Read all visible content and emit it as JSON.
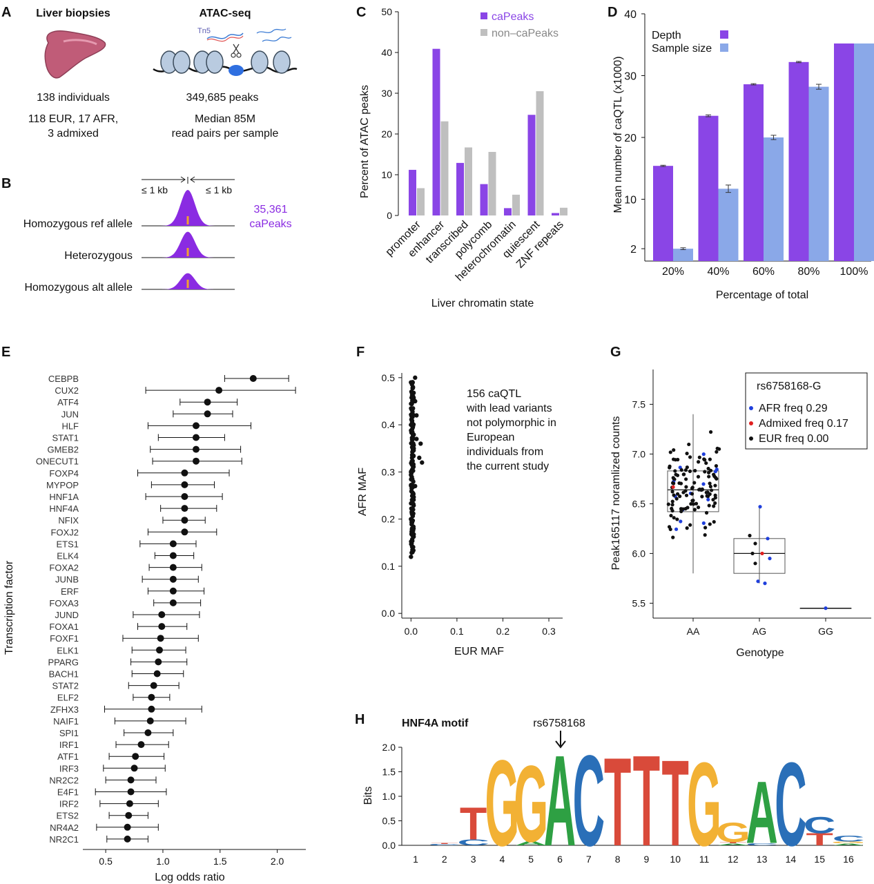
{
  "panels": {
    "A": "A",
    "B": "B",
    "C": "C",
    "D": "D",
    "E": "E",
    "F": "F",
    "G": "G",
    "H": "H"
  },
  "panel_a": {
    "left_title": "Liver biopsies",
    "left_line1": "138 individuals",
    "left_line2": "118 EUR, 17 AFR,",
    "left_line3": "3 admixed",
    "right_title": "ATAC-seq",
    "tn5": "Tn5",
    "right_line1": "349,685 peaks",
    "right_line2": "Median 85M",
    "right_line3": "read pairs per sample"
  },
  "panel_b": {
    "left_kb": "≤ 1 kb",
    "right_kb": "≤ 1 kb",
    "count": "35,361",
    "count_label": "caPeaks",
    "rows": [
      "Homozygous ref allele",
      "Heterozygous",
      "Homozygous alt allele"
    ],
    "peak_heights": [
      1.0,
      0.72,
      0.45
    ],
    "colors": {
      "peak": "#8a2be2",
      "allele": "#f0a030"
    }
  },
  "chart_data": [
    {
      "id": "C",
      "type": "bar",
      "categories": [
        "promoter",
        "enhancer",
        "transcribed",
        "polycomb",
        "heterochromatin",
        "quiescent",
        "ZNF repeats"
      ],
      "series": [
        {
          "name": "caPeaks",
          "values": [
            11.2,
            40.9,
            12.9,
            7.7,
            1.8,
            24.7,
            0.6
          ],
          "color": "#8a45e6"
        },
        {
          "name": "non–caPeaks",
          "values": [
            6.7,
            23.1,
            16.7,
            15.6,
            5.1,
            30.5,
            1.9
          ],
          "color": "#bfbfbf"
        }
      ],
      "xlabel": "Liver chromatin state",
      "ylabel": "Percent of ATAC peaks",
      "ylim": [
        0,
        50
      ],
      "yticks": [
        0,
        10,
        20,
        30,
        40,
        50
      ],
      "legend": "top-right"
    },
    {
      "id": "D",
      "type": "bar",
      "categories": [
        "20%",
        "40%",
        "60%",
        "80%",
        "100%"
      ],
      "series": [
        {
          "name": "Depth",
          "values": [
            15.4,
            23.5,
            28.6,
            32.2,
            35.2
          ],
          "errors": [
            0.1,
            0.15,
            0.1,
            0.1,
            0
          ],
          "color": "#8a45e6"
        },
        {
          "name": "Sample size",
          "values": [
            2.0,
            11.7,
            20.0,
            28.2,
            35.2
          ],
          "errors": [
            0.15,
            0.6,
            0.35,
            0.4,
            0
          ],
          "color": "#8aa8e8"
        }
      ],
      "xlabel": "Percentage of total",
      "ylabel": "Mean number of caQTL (x1000)",
      "ylim": [
        0,
        40
      ],
      "yticks": [
        2,
        10,
        20,
        30,
        40
      ],
      "legend": "top-left"
    },
    {
      "id": "E",
      "type": "scatter",
      "categories": [
        "CEBPB",
        "CUX2",
        "ATF4",
        "JUN",
        "HLF",
        "STAT1",
        "GMEB2",
        "ONECUT1",
        "FOXP4",
        "MYPOP",
        "HNF1A",
        "HNF4A",
        "NFIX",
        "FOXJ2",
        "ETS1",
        "ELK4",
        "FOXA2",
        "JUNB",
        "ERF",
        "FOXA3",
        "JUND",
        "FOXA1",
        "FOXF1",
        "ELK1",
        "PPARG",
        "BACH1",
        "STAT2",
        "ELF2",
        "ZFHX3",
        "NAIF1",
        "SPI1",
        "IRF1",
        "ATF1",
        "IRF3",
        "NR2C2",
        "E4F1",
        "IRF2",
        "ETS2",
        "NR4A2",
        "NR2C1"
      ],
      "values": [
        1.79,
        1.49,
        1.39,
        1.39,
        1.29,
        1.29,
        1.29,
        1.29,
        1.19,
        1.19,
        1.19,
        1.19,
        1.19,
        1.19,
        1.09,
        1.09,
        1.09,
        1.09,
        1.09,
        1.09,
        0.99,
        0.99,
        0.98,
        0.97,
        0.96,
        0.95,
        0.92,
        0.9,
        0.9,
        0.89,
        0.87,
        0.81,
        0.76,
        0.75,
        0.72,
        0.72,
        0.71,
        0.7,
        0.69,
        0.69
      ],
      "ci_low": [
        1.54,
        0.85,
        1.15,
        1.09,
        0.87,
        0.96,
        0.89,
        0.91,
        0.78,
        0.9,
        0.85,
        0.98,
        1.0,
        0.87,
        0.8,
        0.93,
        0.88,
        0.82,
        0.87,
        0.92,
        0.74,
        0.78,
        0.65,
        0.73,
        0.72,
        0.73,
        0.7,
        0.74,
        0.49,
        0.58,
        0.66,
        0.59,
        0.53,
        0.48,
        0.5,
        0.41,
        0.45,
        0.53,
        0.42,
        0.51
      ],
      "ci_high": [
        2.1,
        2.16,
        1.65,
        1.61,
        1.77,
        1.54,
        1.68,
        1.69,
        1.58,
        1.45,
        1.52,
        1.47,
        1.37,
        1.47,
        1.29,
        1.27,
        1.34,
        1.31,
        1.36,
        1.33,
        1.32,
        1.21,
        1.31,
        1.2,
        1.21,
        1.18,
        1.14,
        1.06,
        1.34,
        1.2,
        1.09,
        1.05,
        1.01,
        1.02,
        0.94,
        1.03,
        0.96,
        0.87,
        0.96,
        0.87
      ],
      "xlabel": "Log odds ratio",
      "ylabel": "Transcription factor",
      "xlim": [
        0.3,
        2.25
      ],
      "xticks": [
        0.5,
        1.0,
        1.5,
        2.0
      ],
      "xtick_labels": [
        "0.5",
        "1.0",
        "1.5",
        "2.0"
      ]
    },
    {
      "id": "F",
      "type": "scatter",
      "n_points": 156,
      "x": [
        0.0,
        0.0,
        0.0,
        0.0,
        0.0,
        0.003,
        0.006,
        0.009,
        0.009,
        0.009,
        0.012,
        0.012,
        0.018,
        0.021,
        0.024
      ],
      "y": [
        0.12,
        0.2,
        0.3,
        0.4,
        0.49,
        0.25,
        0.35,
        0.45,
        0.5,
        0.27,
        0.37,
        0.42,
        0.33,
        0.36,
        0.32
      ],
      "annotation_lines": [
        "156 caQTL",
        "with lead variants",
        "not polymorphic in",
        "European",
        "individuals from",
        "the current study"
      ],
      "xlabel": "EUR MAF",
      "ylabel": "AFR MAF",
      "xlim": [
        -0.02,
        0.33
      ],
      "ylim": [
        -0.01,
        0.51
      ],
      "xticks": [
        0.0,
        0.1,
        0.2,
        0.3
      ],
      "xtick_labels": [
        "0.0",
        "0.1",
        "0.2",
        "0.3"
      ],
      "yticks": [
        0.0,
        0.1,
        0.2,
        0.3,
        0.4,
        0.5
      ],
      "ytick_labels": [
        "0.0",
        "0.1",
        "0.2",
        "0.3",
        "0.4",
        "0.5"
      ]
    },
    {
      "id": "G",
      "type": "box",
      "categories": [
        "AA",
        "AG",
        "GG"
      ],
      "boxes": [
        {
          "q1": 6.42,
          "median": 6.64,
          "q3": 6.83,
          "whisker_low": 5.8,
          "whisker_high": 7.4
        },
        {
          "q1": 5.8,
          "median": 6.0,
          "q3": 6.15,
          "whisker_low": 5.7,
          "whisker_high": 6.47
        },
        {
          "q1": 5.45,
          "median": 5.45,
          "q3": 5.45,
          "whisker_low": 5.45,
          "whisker_high": 5.45
        }
      ],
      "points_AG": [
        6.47,
        6.18,
        6.15,
        6.1,
        6.0,
        6.0,
        5.95,
        5.9,
        5.72,
        5.7
      ],
      "points_GG": [
        5.45
      ],
      "legend_title": "rs6758168-G",
      "legend": [
        {
          "label": "AFR freq 0.29",
          "color": "#1f3fdc"
        },
        {
          "label": "Admixed freq 0.17",
          "color": "#e02020"
        },
        {
          "label": "EUR freq 0.00",
          "color": "#111111"
        }
      ],
      "xlabel": "Genotype",
      "ylabel": "Peak165117  noramlized counts",
      "ylim": [
        5.35,
        7.85
      ],
      "yticks": [
        5.5,
        6.0,
        6.5,
        7.0,
        7.5
      ],
      "ytick_labels": [
        "5.5",
        "6.0",
        "6.5",
        "7.0",
        "7.5"
      ]
    },
    {
      "id": "H",
      "type": "sequence-logo",
      "title": "HNF4A motif",
      "variant": "rs6758168",
      "variant_position": 6,
      "positions": [
        1,
        2,
        3,
        4,
        5,
        6,
        7,
        8,
        9,
        10,
        11,
        12,
        13,
        14,
        15,
        16
      ],
      "letters": [
        [],
        [
          {
            "b": "C",
            "h": 0.03
          },
          {
            "b": "T",
            "h": 0.02
          }
        ],
        [
          {
            "b": "C",
            "h": 0.12
          },
          {
            "b": "T",
            "h": 0.68
          }
        ],
        [
          {
            "b": "G",
            "h": 1.8
          }
        ],
        [
          {
            "b": "A",
            "h": 0.08
          },
          {
            "b": "G",
            "h": 1.6
          }
        ],
        [
          {
            "b": "A",
            "h": 1.9
          }
        ],
        [
          {
            "b": "C",
            "h": 1.9
          }
        ],
        [
          {
            "b": "T",
            "h": 1.85
          }
        ],
        [
          {
            "b": "T",
            "h": 1.9
          }
        ],
        [
          {
            "b": "T",
            "h": 1.8
          }
        ],
        [
          {
            "b": "G",
            "h": 1.75
          }
        ],
        [
          {
            "b": "A",
            "h": 0.04
          },
          {
            "b": "T",
            "h": 0.03
          },
          {
            "b": "G",
            "h": 0.4
          }
        ],
        [
          {
            "b": "C",
            "h": 0.05
          },
          {
            "b": "A",
            "h": 1.3
          }
        ],
        [
          {
            "b": "C",
            "h": 1.75
          }
        ],
        [
          {
            "b": "T",
            "h": 0.25
          },
          {
            "b": "C",
            "h": 0.35
          }
        ],
        [
          {
            "b": "A",
            "h": 0.04
          },
          {
            "b": "G",
            "h": 0.04
          },
          {
            "b": "C",
            "h": 0.12
          }
        ]
      ],
      "base_colors": {
        "A": "#2ea043",
        "C": "#2a6fb8",
        "G": "#f2b134",
        "T": "#d94a3a"
      },
      "ylabel": "Bits",
      "ylim": [
        0,
        2.0
      ],
      "yticks": [
        0.0,
        0.5,
        1.0,
        1.5,
        2.0
      ],
      "ytick_labels": [
        "0.0",
        "0.5",
        "1.0",
        "1.5",
        "2.0"
      ]
    }
  ]
}
